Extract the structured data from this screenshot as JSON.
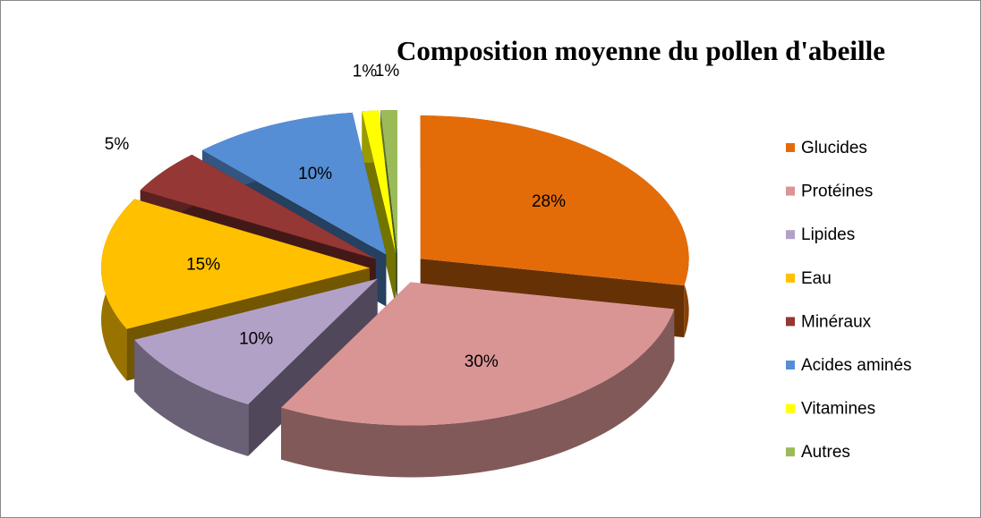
{
  "chart_data": {
    "type": "pie",
    "title": "Composition moyenne du pollen d'abeille",
    "categories": [
      "Glucides",
      "Protéines",
      "Lipides",
      "Eau",
      "Minéraux",
      "Acides aminés",
      "Vitamines",
      "Autres"
    ],
    "values": [
      28,
      30,
      10,
      15,
      5,
      10,
      1,
      1
    ],
    "value_labels": [
      "28%",
      "30%",
      "10%",
      "15%",
      "5%",
      "10%",
      "1%",
      "1%"
    ],
    "colors": [
      "#E36C09",
      "#D99594",
      "#B2A1C7",
      "#FFC000",
      "#953735",
      "#558ED5",
      "#FFFF00",
      "#9BBB59"
    ],
    "legend": "right"
  }
}
